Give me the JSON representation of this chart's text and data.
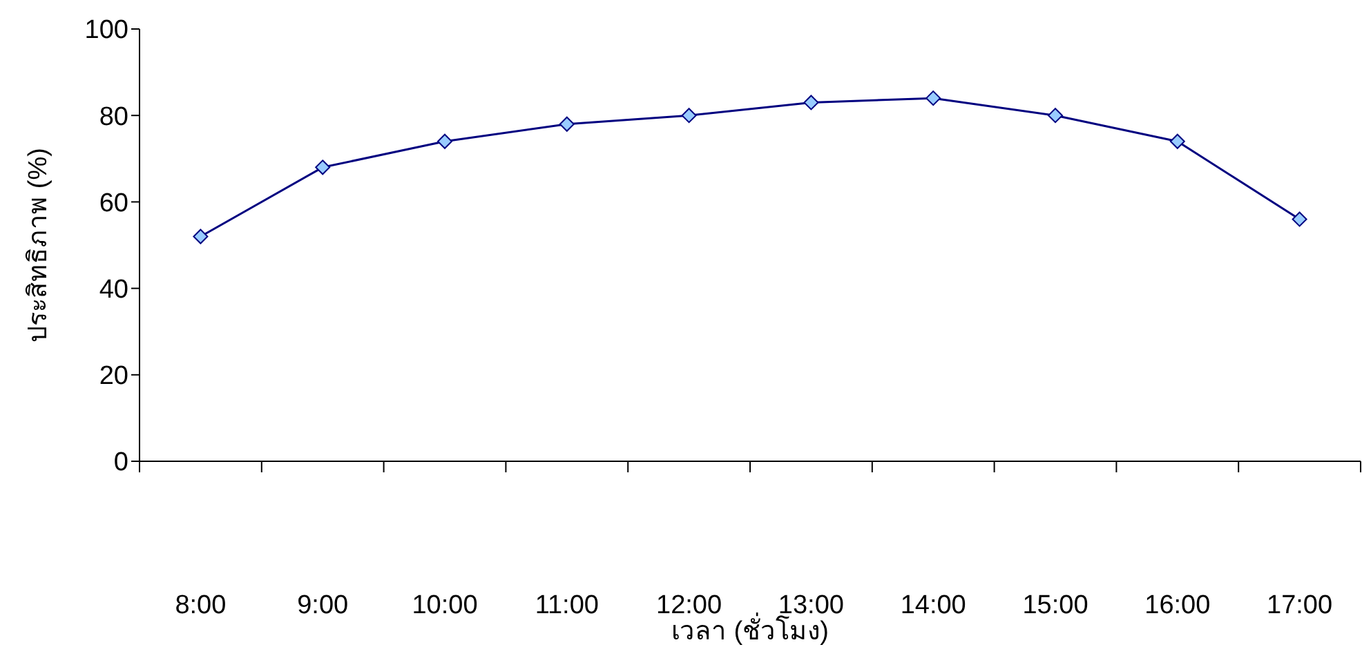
{
  "chart_data": {
    "type": "line",
    "xlabel": "เวลา (ชั่วโมง)",
    "ylabel": "ประสิทธิภาพ (%)",
    "categories": [
      "8:00",
      "9:00",
      "10:00",
      "11:00",
      "12:00",
      "13:00",
      "14:00",
      "15:00",
      "16:00",
      "17:00"
    ],
    "series": [
      {
        "color": "#000080",
        "values": [
          52,
          68,
          74,
          78,
          80,
          83,
          84,
          80,
          74,
          56
        ]
      }
    ],
    "ylim": [
      0,
      100
    ],
    "yticks": [
      0,
      20,
      40,
      60,
      80,
      100
    ],
    "grid": false,
    "legend": false,
    "marker": "diamond",
    "line_style": "solid"
  }
}
